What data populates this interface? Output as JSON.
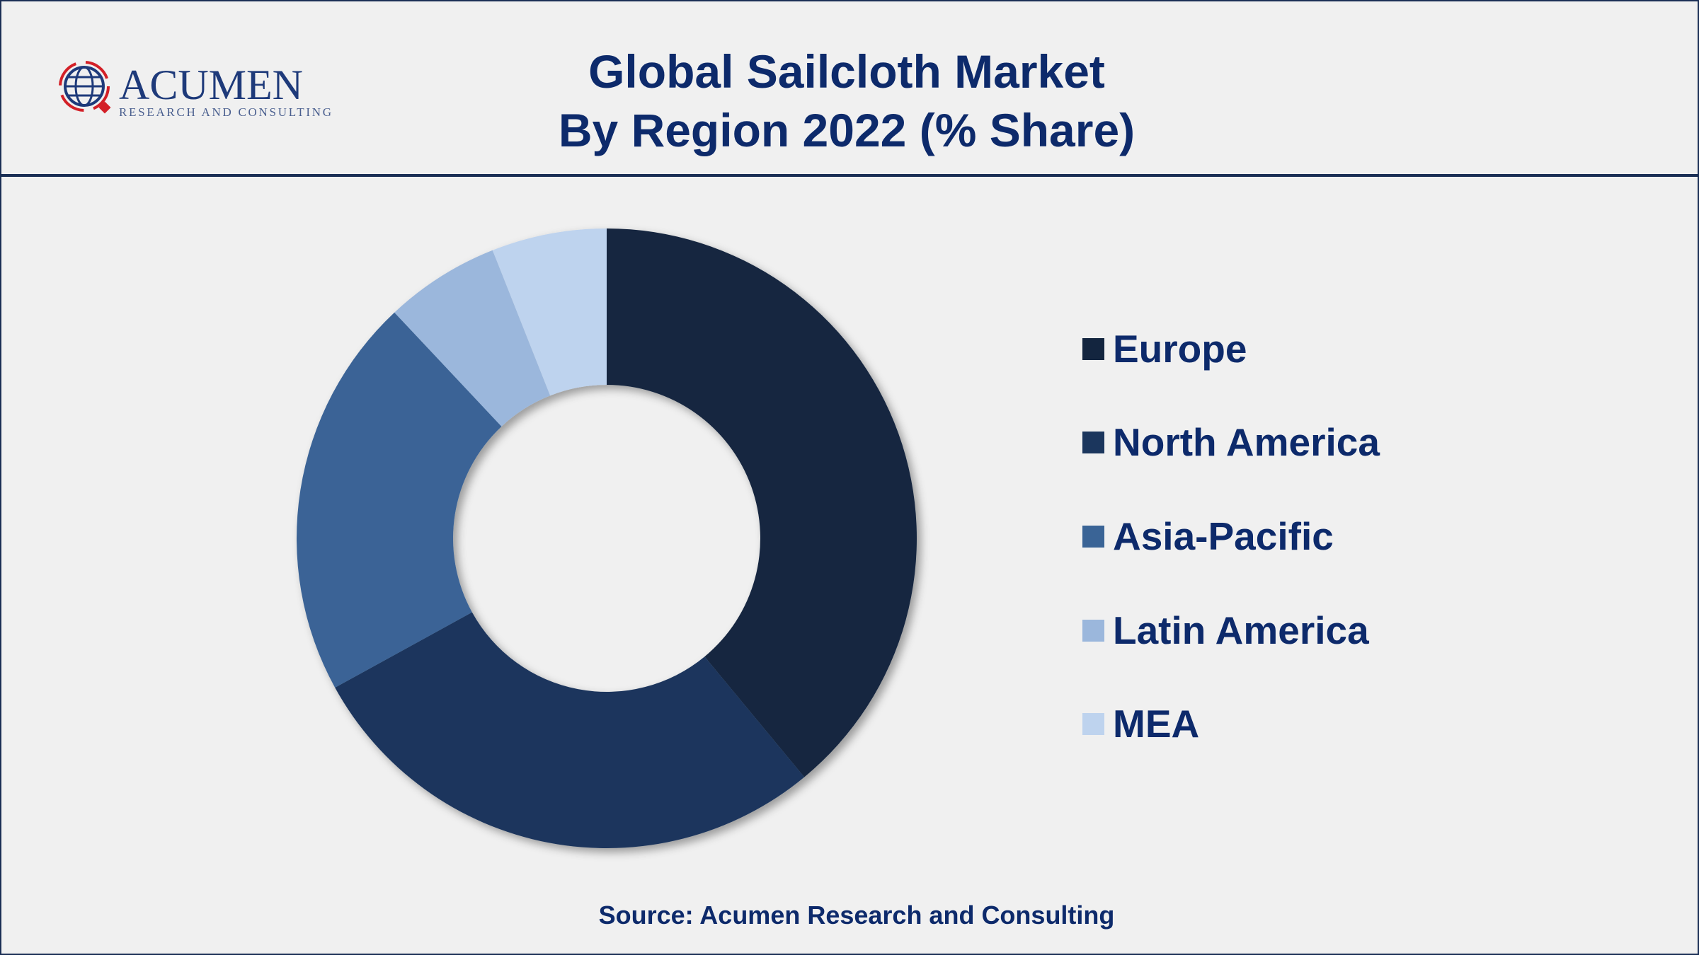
{
  "header": {
    "title_line1": "Global Sailcloth Market",
    "title_line2": "By Region 2022 (% Share)",
    "logo_text": "ACUMEN",
    "logo_subtext": "RESEARCH AND CONSULTING"
  },
  "chart_data": {
    "type": "pie",
    "variant": "donut",
    "title": "Global Sailcloth Market By Region 2022 (% Share)",
    "unit": "%",
    "categories": [
      "Europe",
      "North America",
      "Asia-Pacific",
      "Latin America",
      "MEA"
    ],
    "values": [
      39,
      28,
      21,
      6,
      6
    ],
    "colors": [
      "#13253f",
      "#1b365d",
      "#3a6496",
      "#9bb7dc",
      "#bed3ee"
    ],
    "legend_position": "right",
    "data_labels": false
  },
  "footer": {
    "source": "Source: Acumen Research and Consulting"
  }
}
